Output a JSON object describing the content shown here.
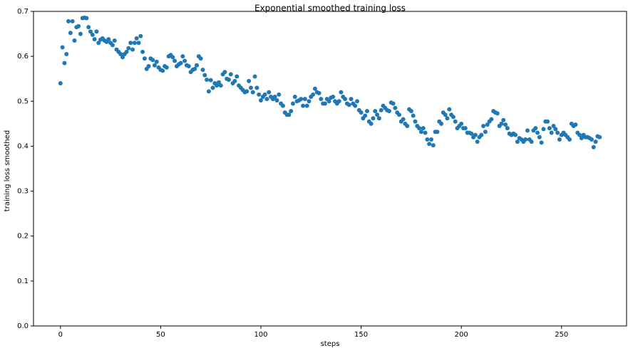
{
  "chart_data": {
    "type": "scatter",
    "title": "Exponential smoothed training loss",
    "x_label": "steps",
    "y_label": "training loss smoothed",
    "color": "#1f77b4",
    "xlim": [
      -13.45,
      282.45
    ],
    "ylim": [
      0,
      0.7
    ],
    "xticks": [
      0,
      50,
      100,
      150,
      200,
      250
    ],
    "yticks": [
      {
        "value": 0,
        "label": "0.0"
      },
      0.1,
      0.2,
      0.3,
      0.4,
      0.5,
      0.6,
      0.7
    ],
    "x": [
      0,
      1,
      2,
      3,
      4,
      5,
      6,
      7,
      8,
      9,
      10,
      11,
      12,
      13,
      14,
      15,
      16,
      17,
      18,
      19,
      20,
      21,
      22,
      23,
      24,
      25,
      26,
      27,
      28,
      29,
      30,
      31,
      32,
      33,
      34,
      35,
      36,
      37,
      38,
      39,
      40,
      41,
      42,
      43,
      44,
      45,
      46,
      47,
      48,
      49,
      50,
      51,
      52,
      53,
      54,
      55,
      56,
      57,
      58,
      59,
      60,
      61,
      62,
      63,
      64,
      65,
      66,
      67,
      68,
      69,
      70,
      71,
      72,
      73,
      74,
      75,
      76,
      77,
      78,
      79,
      80,
      81,
      82,
      83,
      84,
      85,
      86,
      87,
      88,
      89,
      90,
      91,
      92,
      93,
      94,
      95,
      96,
      97,
      98,
      99,
      100,
      101,
      102,
      103,
      104,
      105,
      106,
      107,
      108,
      109,
      110,
      111,
      112,
      113,
      114,
      115,
      116,
      117,
      118,
      119,
      120,
      121,
      122,
      123,
      124,
      125,
      126,
      127,
      128,
      129,
      130,
      131,
      132,
      133,
      134,
      135,
      136,
      137,
      138,
      139,
      140,
      141,
      142,
      143,
      144,
      145,
      146,
      147,
      148,
      149,
      150,
      151,
      152,
      153,
      154,
      155,
      156,
      157,
      158,
      159,
      160,
      161,
      162,
      163,
      164,
      165,
      166,
      167,
      168,
      169,
      170,
      171,
      172,
      173,
      174,
      175,
      176,
      177,
      178,
      179,
      180,
      181,
      182,
      183,
      184,
      185,
      186,
      187,
      188,
      189,
      190,
      191,
      192,
      193,
      194,
      195,
      196,
      197,
      198,
      199,
      200,
      201,
      202,
      203,
      204,
      205,
      206,
      207,
      208,
      209,
      210,
      211,
      212,
      213,
      214,
      215,
      216,
      217,
      218,
      219,
      220,
      221,
      222,
      223,
      224,
      225,
      226,
      227,
      228,
      229,
      230,
      231,
      232,
      233,
      234,
      235,
      236,
      237,
      238,
      239,
      240,
      241,
      242,
      243,
      244,
      245,
      246,
      247,
      248,
      249,
      250,
      251,
      252,
      253,
      254,
      255,
      256,
      257,
      258,
      259,
      260,
      261,
      262,
      263,
      264,
      265,
      266,
      267,
      268,
      269
    ],
    "values": [
      0.54,
      0.62,
      0.585,
      0.605,
      0.678,
      0.652,
      0.678,
      0.635,
      0.665,
      0.667,
      0.65,
      0.685,
      0.686,
      0.685,
      0.665,
      0.655,
      0.648,
      0.638,
      0.655,
      0.63,
      0.637,
      0.64,
      0.635,
      0.632,
      0.638,
      0.63,
      0.625,
      0.635,
      0.615,
      0.61,
      0.605,
      0.598,
      0.605,
      0.61,
      0.618,
      0.63,
      0.615,
      0.63,
      0.64,
      0.63,
      0.645,
      0.61,
      0.595,
      0.572,
      0.578,
      0.595,
      0.592,
      0.58,
      0.588,
      0.575,
      0.57,
      0.568,
      0.578,
      0.575,
      0.6,
      0.603,
      0.598,
      0.59,
      0.578,
      0.582,
      0.585,
      0.6,
      0.59,
      0.58,
      0.578,
      0.565,
      0.57,
      0.572,
      0.58,
      0.6,
      0.595,
      0.57,
      0.558,
      0.548,
      0.522,
      0.547,
      0.53,
      0.54,
      0.535,
      0.542,
      0.535,
      0.56,
      0.565,
      0.55,
      0.548,
      0.56,
      0.54,
      0.545,
      0.555,
      0.535,
      0.53,
      0.525,
      0.52,
      0.522,
      0.545,
      0.53,
      0.52,
      0.555,
      0.53,
      0.515,
      0.502,
      0.51,
      0.515,
      0.505,
      0.52,
      0.51,
      0.505,
      0.51,
      0.502,
      0.515,
      0.495,
      0.49,
      0.475,
      0.47,
      0.47,
      0.478,
      0.495,
      0.51,
      0.5,
      0.502,
      0.505,
      0.49,
      0.505,
      0.49,
      0.5,
      0.51,
      0.515,
      0.528,
      0.52,
      0.518,
      0.505,
      0.495,
      0.495,
      0.505,
      0.5,
      0.508,
      0.51,
      0.5,
      0.495,
      0.5,
      0.52,
      0.51,
      0.505,
      0.495,
      0.492,
      0.505,
      0.495,
      0.49,
      0.5,
      0.48,
      0.475,
      0.462,
      0.468,
      0.478,
      0.455,
      0.45,
      0.462,
      0.478,
      0.47,
      0.462,
      0.48,
      0.49,
      0.485,
      0.48,
      0.478,
      0.497,
      0.495,
      0.485,
      0.475,
      0.47,
      0.455,
      0.46,
      0.45,
      0.445,
      0.482,
      0.478,
      0.468,
      0.455,
      0.445,
      0.44,
      0.432,
      0.44,
      0.43,
      0.415,
      0.405,
      0.415,
      0.402,
      0.432,
      0.432,
      0.455,
      0.45,
      0.475,
      0.47,
      0.462,
      0.482,
      0.47,
      0.465,
      0.455,
      0.44,
      0.445,
      0.45,
      0.44,
      0.44,
      0.43,
      0.43,
      0.428,
      0.42,
      0.425,
      0.41,
      0.42,
      0.425,
      0.445,
      0.432,
      0.448,
      0.455,
      0.46,
      0.478,
      0.475,
      0.473,
      0.445,
      0.45,
      0.458,
      0.448,
      0.44,
      0.428,
      0.425,
      0.428,
      0.425,
      0.41,
      0.418,
      0.415,
      0.41,
      0.415,
      0.435,
      0.415,
      0.41,
      0.435,
      0.44,
      0.43,
      0.42,
      0.408,
      0.438,
      0.455,
      0.455,
      0.44,
      0.43,
      0.445,
      0.438,
      0.43,
      0.415,
      0.425,
      0.43,
      0.425,
      0.42,
      0.415,
      0.45,
      0.445,
      0.448,
      0.43,
      0.425,
      0.418,
      0.425,
      0.42,
      0.42,
      0.418,
      0.415,
      0.398,
      0.41,
      0.422,
      0.42
    ]
  }
}
